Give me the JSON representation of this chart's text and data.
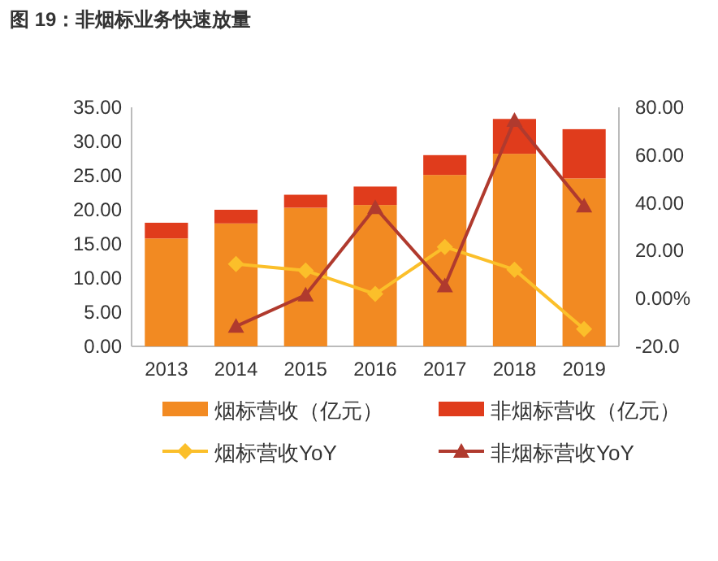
{
  "chart_data": {
    "type": "bar",
    "stacked": true,
    "title": "图 19：非烟标业务快速放量",
    "categories": [
      "2013",
      "2014",
      "2015",
      "2016",
      "2017",
      "2018",
      "2019"
    ],
    "series": [
      {
        "name": "烟标营收（亿元）",
        "color": "#f28a22",
        "values": [
          15.8,
          18.0,
          20.3,
          20.7,
          25.1,
          28.2,
          24.6
        ]
      },
      {
        "name": "非烟标营收（亿元）",
        "color": "#e03c1c",
        "values": [
          2.3,
          2.0,
          1.9,
          2.7,
          2.9,
          5.1,
          7.2
        ]
      },
      {
        "name": "烟标营收YoY",
        "type": "line",
        "axis": "y2",
        "marker": "diamond",
        "color": "#fbbf2a",
        "values": [
          null,
          14.4,
          11.7,
          1.9,
          21.6,
          12.1,
          -12.8
        ]
      },
      {
        "name": "非烟标营收YoY",
        "type": "line",
        "axis": "y2",
        "marker": "triangle",
        "color": "#b03a2e",
        "values": [
          null,
          -11.6,
          1.5,
          38.1,
          5.3,
          74.6,
          38.8
        ]
      }
    ],
    "ylim": [
      0,
      35
    ],
    "yticks": [
      {
        "value": 0,
        "label": "0.00"
      },
      {
        "value": 5,
        "label": "5.00"
      },
      {
        "value": 10,
        "label": "10.00"
      },
      {
        "value": 15,
        "label": "15.00"
      },
      {
        "value": 20,
        "label": "20.00"
      },
      {
        "value": 25,
        "label": "25.00"
      },
      {
        "value": 30,
        "label": "30.00"
      },
      {
        "value": 35,
        "label": "35.00"
      }
    ],
    "y2lim": [
      -20,
      80
    ],
    "y2ticks": [
      {
        "value": -20,
        "label": "-20.0"
      },
      {
        "value": 0,
        "label": "0.00%"
      },
      {
        "value": 20,
        "label": "20.00"
      },
      {
        "value": 40,
        "label": "40.00"
      },
      {
        "value": 60,
        "label": "60.00"
      },
      {
        "value": 80,
        "label": "80.00"
      }
    ],
    "grid": false,
    "legend": "bottom"
  }
}
